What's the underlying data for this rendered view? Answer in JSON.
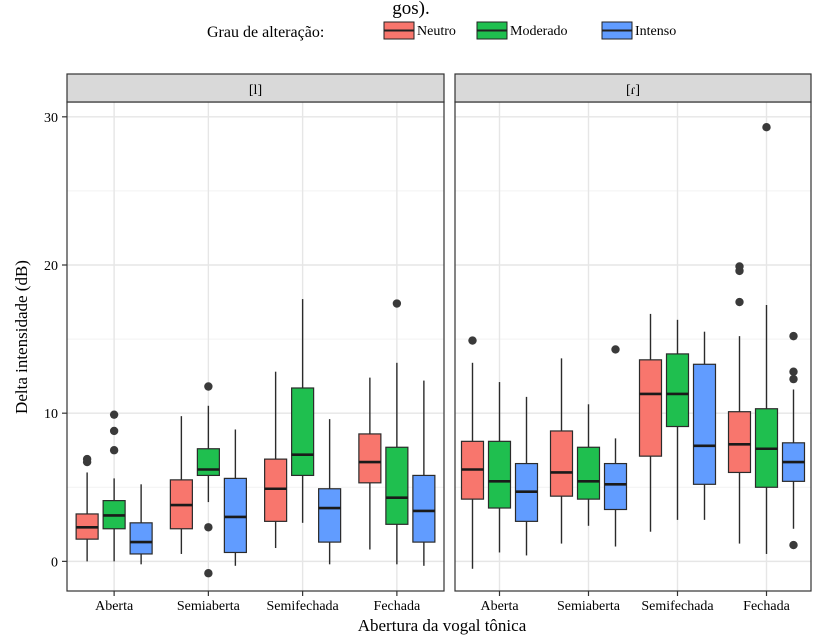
{
  "page_title_fragment": "gos).",
  "legend": {
    "title": "Grau de alteração:",
    "position": "top",
    "entries": [
      {
        "label": "Neutro",
        "color": "#f8766d"
      },
      {
        "label": "Moderado",
        "color": "#1fbf4f"
      },
      {
        "label": "Intenso",
        "color": "#619cff"
      }
    ]
  },
  "chart_data": {
    "type": "boxplot",
    "xlabel": "Abertura da vogal tônica",
    "ylabel": "Delta intensidade (dB)",
    "ylim": [
      -2,
      31
    ],
    "yticks": [
      0,
      10,
      20,
      30
    ],
    "categories": [
      "Aberta",
      "Semiaberta",
      "Semifechada",
      "Fechada"
    ],
    "grid": true,
    "facets": [
      {
        "label": "[l]",
        "series": [
          {
            "name": "Neutro",
            "boxes": [
              {
                "min": 0.0,
                "q1": 1.5,
                "median": 2.3,
                "q3": 3.2,
                "max": 6.0,
                "outliers": [
                  6.7,
                  6.9
                ]
              },
              {
                "min": 0.5,
                "q1": 2.2,
                "median": 3.8,
                "q3": 5.5,
                "max": 9.8,
                "outliers": []
              },
              {
                "min": 0.9,
                "q1": 2.7,
                "median": 4.9,
                "q3": 6.9,
                "max": 12.8,
                "outliers": []
              },
              {
                "min": 0.8,
                "q1": 5.3,
                "median": 6.7,
                "q3": 8.6,
                "max": 12.4,
                "outliers": []
              }
            ]
          },
          {
            "name": "Moderado",
            "boxes": [
              {
                "min": 0.0,
                "q1": 2.2,
                "median": 3.1,
                "q3": 4.1,
                "max": 5.6,
                "outliers": [
                  7.5,
                  8.8,
                  9.9
                ]
              },
              {
                "min": 4.0,
                "q1": 5.8,
                "median": 6.2,
                "q3": 7.6,
                "max": 10.5,
                "outliers": [
                  11.8,
                  2.3,
                  -0.8
                ]
              },
              {
                "min": 2.6,
                "q1": 5.8,
                "median": 7.2,
                "q3": 11.7,
                "max": 17.7,
                "outliers": []
              },
              {
                "min": -0.2,
                "q1": 2.5,
                "median": 4.3,
                "q3": 7.7,
                "max": 13.4,
                "outliers": [
                  17.4
                ]
              }
            ]
          },
          {
            "name": "Intenso",
            "boxes": [
              {
                "min": -0.2,
                "q1": 0.5,
                "median": 1.3,
                "q3": 2.6,
                "max": 5.2,
                "outliers": []
              },
              {
                "min": -0.3,
                "q1": 0.6,
                "median": 3.0,
                "q3": 5.6,
                "max": 8.9,
                "outliers": []
              },
              {
                "min": -0.2,
                "q1": 1.3,
                "median": 3.6,
                "q3": 4.9,
                "max": 9.6,
                "outliers": []
              },
              {
                "min": -0.3,
                "q1": 1.3,
                "median": 3.4,
                "q3": 5.8,
                "max": 12.2,
                "outliers": []
              }
            ]
          }
        ]
      },
      {
        "label": "[ɾ]",
        "series": [
          {
            "name": "Neutro",
            "boxes": [
              {
                "min": -0.5,
                "q1": 4.2,
                "median": 6.2,
                "q3": 8.1,
                "max": 13.4,
                "outliers": [
                  14.9
                ]
              },
              {
                "min": 1.2,
                "q1": 4.4,
                "median": 6.0,
                "q3": 8.8,
                "max": 13.7,
                "outliers": []
              },
              {
                "min": 2.0,
                "q1": 7.1,
                "median": 11.3,
                "q3": 13.6,
                "max": 16.7,
                "outliers": []
              },
              {
                "min": 1.2,
                "q1": 6.0,
                "median": 7.9,
                "q3": 10.1,
                "max": 15.2,
                "outliers": [
                  17.5,
                  19.6,
                  19.9
                ]
              }
            ]
          },
          {
            "name": "Moderado",
            "boxes": [
              {
                "min": 0.6,
                "q1": 3.6,
                "median": 5.4,
                "q3": 8.1,
                "max": 12.1,
                "outliers": []
              },
              {
                "min": 2.4,
                "q1": 4.2,
                "median": 5.4,
                "q3": 7.7,
                "max": 10.6,
                "outliers": []
              },
              {
                "min": 2.8,
                "q1": 9.1,
                "median": 11.3,
                "q3": 14.0,
                "max": 16.3,
                "outliers": []
              },
              {
                "min": 0.5,
                "q1": 5.0,
                "median": 7.6,
                "q3": 10.3,
                "max": 17.3,
                "outliers": [
                  29.3
                ]
              }
            ]
          },
          {
            "name": "Intenso",
            "boxes": [
              {
                "min": 0.4,
                "q1": 2.7,
                "median": 4.7,
                "q3": 6.6,
                "max": 11.1,
                "outliers": []
              },
              {
                "min": 1.0,
                "q1": 3.5,
                "median": 5.2,
                "q3": 6.6,
                "max": 8.3,
                "outliers": [
                  14.3
                ]
              },
              {
                "min": 2.8,
                "q1": 5.2,
                "median": 7.8,
                "q3": 13.3,
                "max": 15.5,
                "outliers": []
              },
              {
                "min": 2.2,
                "q1": 5.4,
                "median": 6.7,
                "q3": 8.0,
                "max": 11.6,
                "outliers": [
                  12.3,
                  12.8,
                  15.2,
                  1.1
                ]
              }
            ]
          }
        ]
      }
    ]
  }
}
